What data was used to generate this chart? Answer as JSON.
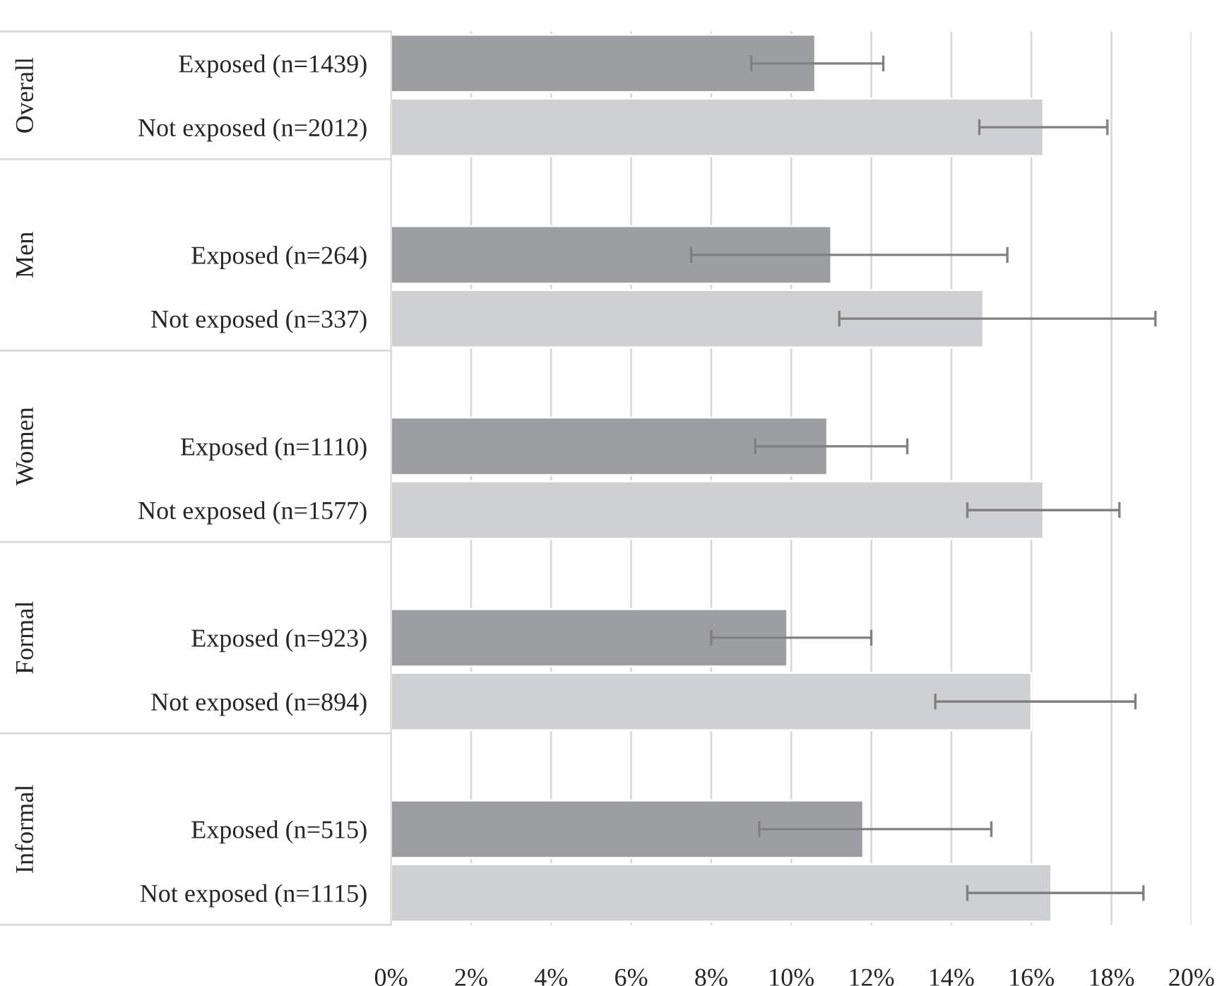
{
  "chart_data": {
    "type": "bar",
    "orientation": "horizontal",
    "categories": [
      "Exposed (n=1439)",
      "Not exposed (n=2012)",
      null,
      "Exposed (n=264)",
      "Not exposed (n=337)",
      null,
      "Exposed (n=1110)",
      "Not exposed (n=1577)",
      null,
      "Exposed (n=923)",
      "Not exposed (n=894)",
      null,
      "Exposed (n=515)",
      "Not exposed (n=1115)"
    ],
    "values": [
      10.6,
      16.3,
      null,
      11.0,
      14.8,
      null,
      10.9,
      16.3,
      null,
      9.9,
      16.0,
      null,
      11.8,
      16.5
    ],
    "errors": [
      [
        9.0,
        12.3
      ],
      [
        14.7,
        17.9
      ],
      null,
      [
        7.5,
        15.4
      ],
      [
        11.2,
        19.1
      ],
      null,
      [
        9.1,
        12.9
      ],
      [
        14.4,
        18.2
      ],
      null,
      [
        8.0,
        12.0
      ],
      [
        13.6,
        18.6
      ],
      null,
      [
        9.2,
        15.0
      ],
      [
        14.4,
        18.8
      ]
    ],
    "colors": [
      "#9d9ea2",
      "#cfd0d2",
      null,
      "#9d9ea2",
      "#cfd0d2",
      null,
      "#9d9ea2",
      "#cfd0d2",
      null,
      "#9d9ea2",
      "#cfd0d2",
      null,
      "#9d9ea2",
      "#cfd0d2"
    ],
    "annotations": [
      "Overall",
      "Men",
      "Women",
      "Formal",
      "Informal"
    ],
    "xlim": [
      0,
      20
    ],
    "xticks": [
      {
        "value": 0,
        "label": "0%"
      },
      {
        "value": 2,
        "label": "2%"
      },
      {
        "value": 4,
        "label": "4%"
      },
      {
        "value": 6,
        "label": "6%"
      },
      {
        "value": 8,
        "label": "8%"
      },
      {
        "value": 10,
        "label": "10%"
      },
      {
        "value": 12,
        "label": "12%"
      },
      {
        "value": 14,
        "label": "14%"
      },
      {
        "value": 16,
        "label": "16%"
      },
      {
        "value": 18,
        "label": "18%"
      },
      {
        "value": 20,
        "label": "20%"
      }
    ],
    "grid": "x",
    "legend": false
  }
}
